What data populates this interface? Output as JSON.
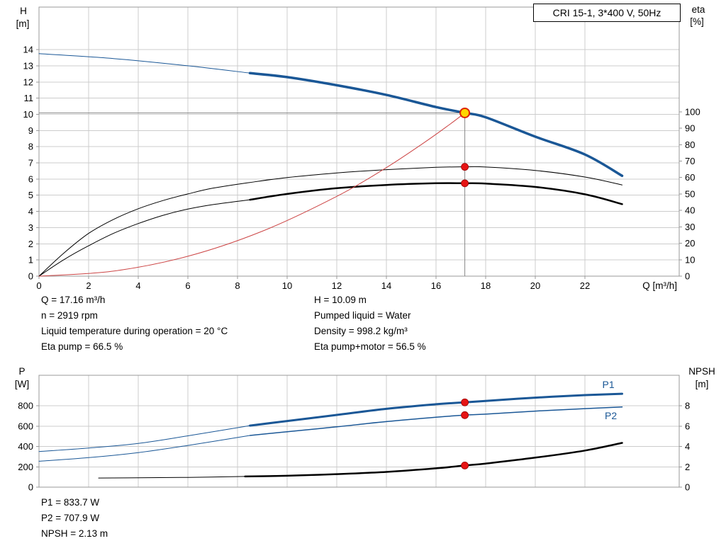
{
  "title_box": {
    "label": "CRI 15-1, 3*400 V, 50Hz"
  },
  "colors": {
    "blue": "#1a5796",
    "black": "#000000",
    "red": "#cc4444",
    "marker_red": "#e61414",
    "marker_yellow": "#ffd700",
    "marker_ring": "#dd2200",
    "grid": "#cccccc",
    "frame": "#999999",
    "duty_line": "#888888"
  },
  "annotations": {
    "left": [
      "Q = 17.16 m³/h",
      "n = 2919 rpm",
      "Liquid temperature during operation = 20 °C",
      "Eta pump = 66.5 %"
    ],
    "right": [
      "H = 10.09 m",
      "Pumped liquid = Water",
      "Density = 998.2 kg/m³",
      "Eta pump+motor = 56.5 %"
    ],
    "bottom": [
      "P1 = 833.7 W",
      "P2 = 707.9 W",
      "NPSH = 2.13 m"
    ]
  },
  "chart_data": [
    {
      "type": "line",
      "title": "Head and efficiency curves",
      "x_axis": {
        "label": "Q [m³/h]",
        "min": 0,
        "max": 25.8,
        "ticks": [
          0,
          2,
          4,
          6,
          8,
          10,
          12,
          14,
          16,
          18,
          20,
          22
        ]
      },
      "y_left": {
        "label_lines": [
          "H",
          "[m]"
        ],
        "min": 0,
        "max": 16.63,
        "ticks": [
          0,
          1,
          2,
          3,
          4,
          5,
          6,
          7,
          8,
          9,
          10,
          11,
          12,
          13,
          14
        ]
      },
      "y_right": {
        "label_lines": [
          "eta",
          "[%]"
        ],
        "min": 0,
        "max": 163.7,
        "ticks": [
          0,
          10,
          20,
          30,
          40,
          50,
          60,
          70,
          80,
          90,
          100
        ]
      },
      "series": [
        {
          "name": "head-curve-extension",
          "axis": "left",
          "color": "blue",
          "width": 1,
          "points": [
            [
              0,
              13.75
            ],
            [
              3,
              13.45
            ],
            [
              6,
              13.0
            ],
            [
              8.5,
              12.55
            ]
          ]
        },
        {
          "name": "head-curve",
          "axis": "left",
          "color": "blue",
          "width": 3.5,
          "points": [
            [
              8.5,
              12.55
            ],
            [
              10,
              12.3
            ],
            [
              12,
              11.8
            ],
            [
              14,
              11.2
            ],
            [
              16,
              10.45
            ],
            [
              17.16,
              10.09
            ],
            [
              18,
              9.82
            ],
            [
              20,
              8.62
            ],
            [
              22,
              7.52
            ],
            [
              23.5,
              6.2
            ]
          ]
        },
        {
          "name": "eta-pump-curve",
          "axis": "right",
          "color": "black",
          "width": 1,
          "points": [
            [
              0,
              0
            ],
            [
              1,
              14
            ],
            [
              2,
              26
            ],
            [
              3,
              34.5
            ],
            [
              4,
              41
            ],
            [
              5,
              46
            ],
            [
              6,
              50
            ],
            [
              7,
              53.5
            ],
            [
              8.5,
              57
            ],
            [
              10,
              60
            ],
            [
              12,
              62.8
            ],
            [
              14,
              64.8
            ],
            [
              16,
              66.2
            ],
            [
              17.16,
              66.5
            ],
            [
              18,
              66.4
            ],
            [
              20,
              64.3
            ],
            [
              22,
              60.3
            ],
            [
              23.5,
              55.5
            ]
          ]
        },
        {
          "name": "eta-pump-motor-extension",
          "axis": "right",
          "color": "black",
          "width": 1,
          "points": [
            [
              0,
              0
            ],
            [
              1,
              10
            ],
            [
              2,
              18.5
            ],
            [
              3,
              26
            ],
            [
              4,
              32
            ],
            [
              5,
              37
            ],
            [
              6,
              40.8
            ],
            [
              7,
              43.5
            ],
            [
              8.5,
              46.5
            ]
          ]
        },
        {
          "name": "eta-pump-motor-curve",
          "axis": "right",
          "color": "black",
          "width": 2.5,
          "points": [
            [
              8.5,
              46.5
            ],
            [
              10,
              50
            ],
            [
              12,
              53.5
            ],
            [
              14,
              55.5
            ],
            [
              16,
              56.5
            ],
            [
              17.16,
              56.5
            ],
            [
              18,
              56.3
            ],
            [
              20,
              54.3
            ],
            [
              22,
              49.8
            ],
            [
              23.5,
              43.8
            ]
          ]
        },
        {
          "name": "system-curve",
          "axis": "left",
          "color": "red",
          "width": 1,
          "points": [
            [
              0,
              0
            ],
            [
              3,
              0.31
            ],
            [
              6,
              1.23
            ],
            [
              9,
              2.78
            ],
            [
              12,
              4.93
            ],
            [
              14,
              6.71
            ],
            [
              15.5,
              8.23
            ],
            [
              16.5,
              9.32
            ],
            [
              17.16,
              10.09
            ]
          ]
        }
      ],
      "duty_lines": [
        {
          "axis": "left",
          "from": [
            0,
            10.09
          ],
          "to": [
            17.16,
            10.09
          ]
        },
        {
          "axis": "left",
          "from": [
            17.16,
            0
          ],
          "to": [
            17.16,
            10.09
          ]
        }
      ],
      "markers": [
        {
          "type": "dot",
          "axis": "right",
          "x": 17.16,
          "value": 66.5
        },
        {
          "type": "dot",
          "axis": "right",
          "x": 17.16,
          "value": 56.5
        },
        {
          "type": "duty",
          "axis": "left",
          "x": 17.16,
          "value": 10.09
        }
      ],
      "series_labels": []
    },
    {
      "type": "line",
      "title": "Power and NPSH curves",
      "x_axis": {
        "label": "",
        "min": 0,
        "max": 25.8,
        "ticks": [
          0,
          2,
          4,
          6,
          8,
          10,
          12,
          14,
          16,
          18,
          20,
          22
        ]
      },
      "y_left": {
        "label_lines": [
          "P",
          "[W]"
        ],
        "min": 0,
        "max": 1100,
        "ticks": [
          0,
          200,
          400,
          600,
          800
        ]
      },
      "y_right": {
        "label_lines": [
          "NPSH",
          "[m]"
        ],
        "min": 0,
        "max": 11,
        "ticks": [
          0,
          2,
          4,
          6,
          8
        ]
      },
      "series": [
        {
          "name": "p1-curve-extension",
          "axis": "left",
          "color": "blue",
          "width": 1,
          "points": [
            [
              0,
              350
            ],
            [
              2,
              385
            ],
            [
              4,
              430
            ],
            [
              6,
              505
            ],
            [
              8.5,
              605
            ]
          ]
        },
        {
          "name": "p1-curve",
          "axis": "left",
          "color": "blue",
          "width": 3,
          "points": [
            [
              8.5,
              605
            ],
            [
              10,
              650
            ],
            [
              12,
              710
            ],
            [
              14,
              770
            ],
            [
              16,
              815
            ],
            [
              17.16,
              833.7
            ],
            [
              18,
              848
            ],
            [
              20,
              880
            ],
            [
              22,
              905
            ],
            [
              23.5,
              918
            ]
          ]
        },
        {
          "name": "p2-curve-extension",
          "axis": "left",
          "color": "blue",
          "width": 1,
          "points": [
            [
              0,
              255
            ],
            [
              2,
              290
            ],
            [
              4,
              340
            ],
            [
              6,
              410
            ],
            [
              8.5,
              508
            ]
          ]
        },
        {
          "name": "p2-curve",
          "axis": "left",
          "color": "blue",
          "width": 1.5,
          "points": [
            [
              8.5,
              508
            ],
            [
              10,
              545
            ],
            [
              12,
              593
            ],
            [
              14,
              645
            ],
            [
              16,
              688
            ],
            [
              17.16,
              707.9
            ],
            [
              18,
              718
            ],
            [
              20,
              748
            ],
            [
              22,
              772
            ],
            [
              23.5,
              788
            ]
          ]
        },
        {
          "name": "npsh-curve-extension",
          "axis": "right",
          "color": "black",
          "width": 1,
          "points": [
            [
              2.4,
              0.9
            ],
            [
              4,
              0.92
            ],
            [
              6,
              0.96
            ],
            [
              8.3,
              1.05
            ]
          ]
        },
        {
          "name": "npsh-curve",
          "axis": "right",
          "color": "black",
          "width": 2.5,
          "points": [
            [
              8.3,
              1.05
            ],
            [
              10,
              1.12
            ],
            [
              12,
              1.28
            ],
            [
              14,
              1.5
            ],
            [
              16,
              1.85
            ],
            [
              17.16,
              2.13
            ],
            [
              18,
              2.32
            ],
            [
              20,
              2.9
            ],
            [
              22,
              3.6
            ],
            [
              23.5,
              4.35
            ]
          ]
        }
      ],
      "duty_lines": [],
      "markers": [
        {
          "type": "dot",
          "axis": "left",
          "x": 17.16,
          "value": 833.7
        },
        {
          "type": "dot",
          "axis": "left",
          "x": 17.16,
          "value": 707.9
        },
        {
          "type": "dot",
          "axis": "right",
          "x": 17.16,
          "value": 2.13
        }
      ],
      "series_labels": [
        {
          "text": "P1",
          "x": 22.7,
          "value": 975,
          "axis": "left",
          "color": "blue"
        },
        {
          "text": "P2",
          "x": 22.8,
          "value": 668,
          "axis": "left",
          "color": "blue"
        }
      ]
    }
  ]
}
